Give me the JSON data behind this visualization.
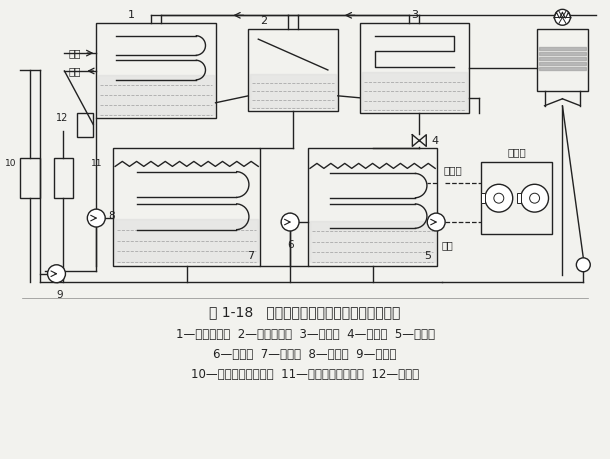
{
  "title": "图 1-18   双效溴化锂吸收式制冷机的工作原理",
  "caption_line1": "1—高压发生器  2—低压发生器  3—冷凝器  4—节流阀  5—蒸发器",
  "caption_line2": "6—蒸发泵  7—吸收器  8—吸收泵  9—发生泵",
  "caption_line3": "10—低温溶液热交换器  11—高温溶液热交换器  12—凝水器",
  "bg_color": "#f2f2ee",
  "line_color": "#222222",
  "figure_width": 6.1,
  "figure_height": 4.59,
  "dpi": 100
}
